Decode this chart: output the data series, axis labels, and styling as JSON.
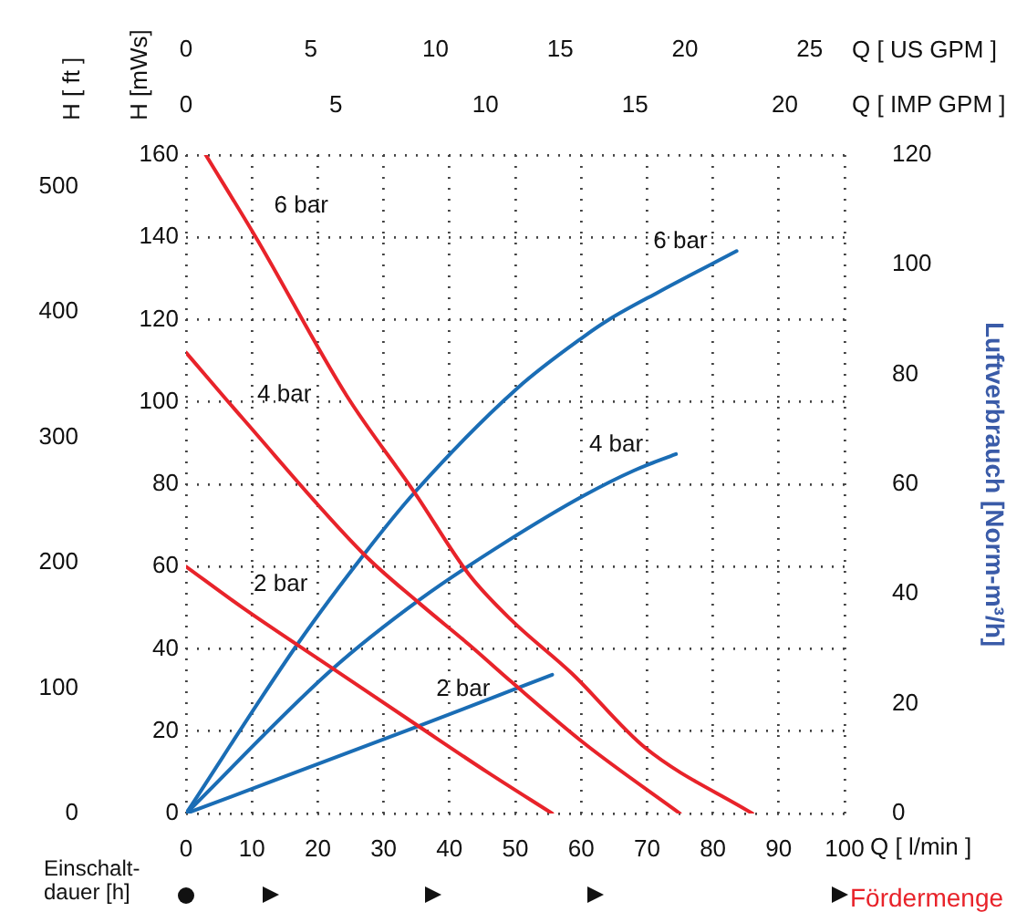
{
  "chart_data": {
    "type": "line",
    "xlabel": "Q [ l/min ]",
    "x2label": "Q [ US GPM ]",
    "ylabel": "H [mWs]",
    "y3label": "H [ ft ]",
    "y2label": "Luftverbrauch [Norm-m³/h]",
    "xlim": [
      0,
      100
    ],
    "xticks": [
      0,
      10,
      20,
      30,
      40,
      50,
      60,
      70,
      80,
      90,
      100
    ],
    "x2lim": [
      0,
      26.4
    ],
    "x2ticks": [
      0,
      5,
      10,
      15,
      20,
      25
    ],
    "ylim": [
      0,
      160
    ],
    "yticks": [
      0,
      20,
      40,
      60,
      80,
      100,
      120,
      140,
      160
    ],
    "y3lim": [
      0,
      525
    ],
    "y3ticks": [
      0,
      100,
      200,
      300,
      400,
      500
    ],
    "y2lim": [
      0,
      120
    ],
    "y2ticks": [
      0,
      20,
      40,
      60,
      80,
      100,
      120
    ],
    "grid": true,
    "legend": false,
    "marker": "none",
    "line_style": "solid",
    "series": [
      {
        "name": "6 bar",
        "color": "#e8232a",
        "x": [
          3,
          10.6,
          24.4,
          34.7,
          43,
          49.4,
          58.6,
          69.7,
          86
        ],
        "values": [
          160,
          140,
          101.5,
          78,
          58,
          47,
          34,
          16,
          0
        ]
      },
      {
        "name": "4 bar",
        "color": "#e8232a",
        "x": [
          0,
          8.6,
          27,
          35.5,
          43,
          49.4,
          60.5,
          75
        ],
        "values": [
          112,
          96,
          63,
          51,
          41,
          32,
          17,
          0
        ]
      },
      {
        "name": "2 bar",
        "color": "#e8232a",
        "x": [
          0,
          8.6,
          22.5,
          35.5,
          45.8,
          55.6
        ],
        "values": [
          60,
          50,
          35,
          21,
          10,
          0
        ]
      },
      {
        "name": "6 bar",
        "color": "#1a6db5",
        "axis": "y2",
        "x": [
          0,
          17,
          27.2,
          34.7,
          50.3,
          60.5,
          64.2,
          71.7,
          83.6
        ],
        "values": [
          0,
          31,
          47.5,
          58.5,
          77.5,
          87,
          90,
          95,
          102.5
        ]
      },
      {
        "name": "4 bar",
        "color": "#1a6db5",
        "axis": "y2",
        "x": [
          0,
          22.2,
          35.5,
          48.6,
          60.5,
          68,
          74.4
        ],
        "values": [
          0,
          26.3,
          39,
          49.5,
          58,
          62.5,
          65.5
        ]
      },
      {
        "name": "2 bar",
        "color": "#1a6db5",
        "axis": "y2",
        "x": [
          0,
          35.5,
          55.6
        ],
        "values": [
          0,
          16,
          25.3
        ]
      }
    ],
    "annotations": [
      "Einschalt-\ndauer [h]",
      "Fördermenge",
      "Q [ IMP GPM ]",
      "0",
      "5",
      "10",
      "15",
      "20"
    ]
  }
}
